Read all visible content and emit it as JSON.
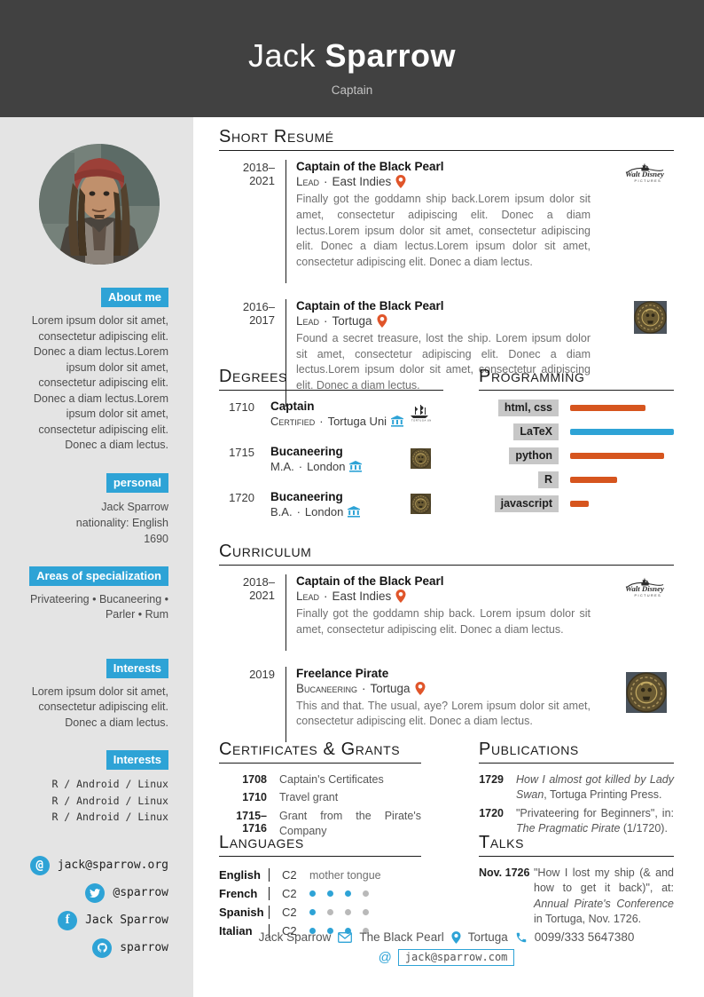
{
  "colors": {
    "header_bg": "#414141",
    "sidebar_bg": "#e4e4e4",
    "accent_blue": "#2ea3d6",
    "accent_orange": "#d6551e",
    "badge_gray": "#c7c7c7"
  },
  "header": {
    "first_name": "Jack",
    "last_name": "Sparrow",
    "position": "Captain"
  },
  "sidebar": {
    "about": {
      "title": "About me",
      "text": "Lorem ipsum dolor sit amet, consectetur adipiscing elit. Donec a diam lectus.Lorem ipsum dolor sit amet, consectetur adipiscing elit. Donec a diam lectus.Lorem ipsum dolor sit amet, consectetur adipiscing elit. Donec a diam lectus."
    },
    "personal": {
      "title": "personal",
      "lines": [
        "Jack Sparrow",
        "nationality: English",
        "1690"
      ]
    },
    "specialization": {
      "title": "Areas of specialization",
      "text": "Privateering • Bucaneering • Parler • Rum"
    },
    "interests1": {
      "title": "Interests",
      "text": "Lorem ipsum dolor sit amet, consectetur adipiscing elit. Donec a diam lectus."
    },
    "interests2": {
      "title": "Interests",
      "lines": [
        "R / Android / Linux",
        "R / Android / Linux",
        "R / Android / Linux"
      ]
    },
    "contacts": [
      {
        "icon": "at-icon",
        "text": "jack@sparrow.org"
      },
      {
        "icon": "twitter-icon",
        "text": "@sparrow"
      },
      {
        "icon": "facebook-icon",
        "text": "Jack Sparrow"
      },
      {
        "icon": "github-icon",
        "text": "sparrow"
      }
    ]
  },
  "sections": {
    "short_resume": {
      "title": "Short Resumé",
      "entries": [
        {
          "dates": "2018–2021",
          "title": "Captain of the Black Pearl",
          "role": "Lead",
          "location": "East Indies",
          "description": "Finally got the goddamn ship back.Lorem ipsum dolor sit amet, consectetur adipiscing elit. Donec a diam lectus.Lorem ipsum dolor sit amet, consectetur adipiscing elit. Donec a diam lectus.Lorem ipsum dolor sit amet, consectetur adipiscing elit. Donec a diam lectus.",
          "logo": "disney-pictures-logo"
        },
        {
          "dates": "2016–2017",
          "title": "Captain of the Black Pearl",
          "role": "Lead",
          "location": "Tortuga",
          "description": "Found a secret treasure, lost the ship. Lorem ipsum dolor sit amet, consectetur adipiscing elit. Donec a diam lectus.Lorem ipsum dolor sit amet, consectetur adipiscing elit. Donec a diam lectus.",
          "logo": "aztec-coin-logo"
        }
      ]
    },
    "degrees": {
      "title": "Degrees",
      "entries": [
        {
          "year": "1710",
          "title": "Captain",
          "role": "Certified",
          "institution": "Tortuga Uni",
          "logo": "ship-logo"
        },
        {
          "year": "1715",
          "title": "Bucaneering",
          "role": "M.A.",
          "institution": "London",
          "logo": "coin-logo"
        },
        {
          "year": "1720",
          "title": "Bucaneering",
          "role": "B.A.",
          "institution": "London",
          "logo": "coin-logo"
        }
      ]
    },
    "programming": {
      "title": "Programming",
      "skills": [
        {
          "label": "html, css",
          "percent": 73,
          "color": "#d6551e"
        },
        {
          "label": "LaTeX",
          "percent": 100,
          "color": "#2ea3d6"
        },
        {
          "label": "python",
          "percent": 91,
          "color": "#d6551e"
        },
        {
          "label": "R",
          "percent": 45,
          "color": "#d6551e"
        },
        {
          "label": "javascript",
          "percent": 18,
          "color": "#d6551e"
        }
      ]
    },
    "curriculum": {
      "title": "Curriculum",
      "entries": [
        {
          "dates": "2018–2021",
          "title": "Captain of the Black Pearl",
          "role": "Lead",
          "location": "East Indies",
          "description": "Finally got the goddamn ship back. Lorem ipsum dolor sit amet, consectetur adipiscing elit. Donec a diam lectus.",
          "logo": "disney-pictures-logo"
        },
        {
          "dates": "2019",
          "title": "Freelance Pirate",
          "role": "Bucaneering",
          "location": "Tortuga",
          "description": "This and that. The usual, aye? Lorem ipsum dolor sit amet, consectetur adipiscing elit. Donec a diam lectus.",
          "logo": "aztec-coin-logo"
        }
      ]
    },
    "certificates": {
      "title": "Certificates & Grants",
      "entries": [
        {
          "year": "1708",
          "text": "Captain's Certificates"
        },
        {
          "year": "1710",
          "text": "Travel grant"
        },
        {
          "year": "1715–1716",
          "text": "Grant from the Pirate's Company"
        }
      ]
    },
    "publications": {
      "title": "Publications",
      "entries": [
        {
          "year": "1729",
          "pre": "",
          "italic": "How I almost got killed by Lady Swan",
          "rest": ", Tortuga Printing Press."
        },
        {
          "year": "1720",
          "pre": "\"Privateering for Beginners\", in: ",
          "italic": "The Pragmatic Pirate",
          "rest": " (1/1720)."
        }
      ]
    },
    "languages": {
      "title": "Languages",
      "rows": [
        {
          "language": "English",
          "level": "C2",
          "note": "mother tongue",
          "dots": null
        },
        {
          "language": "French",
          "level": "C2",
          "note": "",
          "dots": [
            1,
            1,
            1,
            0
          ]
        },
        {
          "language": "Spanish",
          "level": "C2",
          "note": "",
          "dots": [
            1,
            0,
            0,
            0
          ]
        },
        {
          "language": "Italian",
          "level": "C2",
          "note": "",
          "dots": [
            1,
            1,
            1,
            0
          ]
        }
      ]
    },
    "talks": {
      "title": "Talks",
      "entries": [
        {
          "date": "Nov. 1726",
          "pre": "\"How I lost my ship (& and how to get it back)\", at: ",
          "italic": "Annual Pirate's Conference",
          "rest": " in Tortuga, Nov. 1726."
        }
      ]
    }
  },
  "footer": {
    "name": "Jack Sparrow",
    "ship": "The Black Pearl",
    "location": "Tortuga",
    "phone": "0099/333 5647380",
    "email": "jack@sparrow.com"
  }
}
